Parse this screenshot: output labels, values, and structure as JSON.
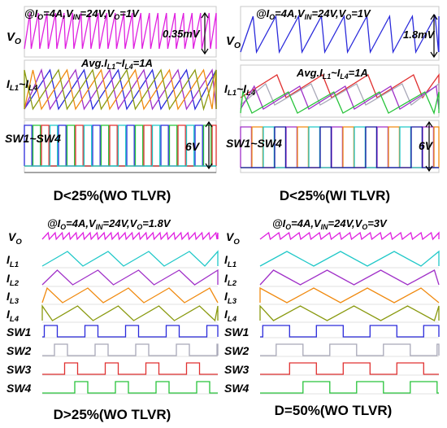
{
  "colors": {
    "magenta": "#E020E0",
    "blue": "#2A2ADB",
    "green": "#27C33A",
    "red": "#E03030",
    "orange": "#F08A10",
    "purple": "#A030C8",
    "olive": "#8A9A10",
    "teal": "#20C8C8",
    "gray": "#A8A8B8",
    "navy": "#1A1AA0"
  },
  "panels": [
    {
      "id": "tl",
      "condition": {
        "pre": "@I",
        "s1": "O",
        "m1": "=4A,V",
        "s2": "IN",
        "m2": "=24V,V",
        "s3": "O",
        "end": "=1V"
      },
      "vo": {
        "main": "V",
        "sub": "O"
      },
      "ripple": "0.35mV",
      "avg": {
        "a": "Avg.I",
        "s1": "L1",
        "b": "~I",
        "s2": "L4",
        "c": "=1A"
      },
      "il": {
        "a": "I",
        "s1": "L1",
        "b": "~I",
        "s2": "L4"
      },
      "sw": "SW1~SW4",
      "volt": "6V",
      "caption": "D<25%(WO TLVR)"
    },
    {
      "id": "tr",
      "condition": {
        "pre": "@I",
        "s1": "O",
        "m1": "=4A,V",
        "s2": "IN",
        "m2": "=24V,V",
        "s3": "O",
        "end": "=1V"
      },
      "vo": {
        "main": "V",
        "sub": "O"
      },
      "ripple": "1.8mV",
      "avg": {
        "a": "Avg.I",
        "s1": "L1",
        "b": "~I",
        "s2": "L4",
        "c": "=1A"
      },
      "il": {
        "a": "I",
        "s1": "L1",
        "b": "~I",
        "s2": "L4"
      },
      "sw": "SW1~SW4",
      "volt": "6V",
      "caption": "D<25%(WI TLVR)"
    },
    {
      "id": "bl",
      "condition": {
        "pre": "@I",
        "s1": "O",
        "m1": "=4A,V",
        "s2": "IN",
        "m2": "=24V,V",
        "s3": "O",
        "end": "=1.8V"
      },
      "labels": [
        "V",
        "I",
        "I",
        "I",
        "I",
        "SW1",
        "SW2",
        "SW3",
        "SW4"
      ],
      "subs": [
        "O",
        "L1",
        "L2",
        "L3",
        "L4",
        "",
        "",
        "",
        ""
      ],
      "caption": "D>25%(WO TLVR)"
    },
    {
      "id": "br",
      "condition": {
        "pre": "@I",
        "s1": "O",
        "m1": "=4A,V",
        "s2": "IN",
        "m2": "=24V,V",
        "s3": "O",
        "end": "=3V"
      },
      "labels": [
        "V",
        "I",
        "I",
        "I",
        "I",
        "SW1",
        "SW2",
        "SW3",
        "SW4"
      ],
      "subs": [
        "O",
        "L1",
        "L2",
        "L3",
        "L4",
        "",
        "",
        "",
        ""
      ],
      "caption": "D=50%(WO TLVR)"
    }
  ]
}
